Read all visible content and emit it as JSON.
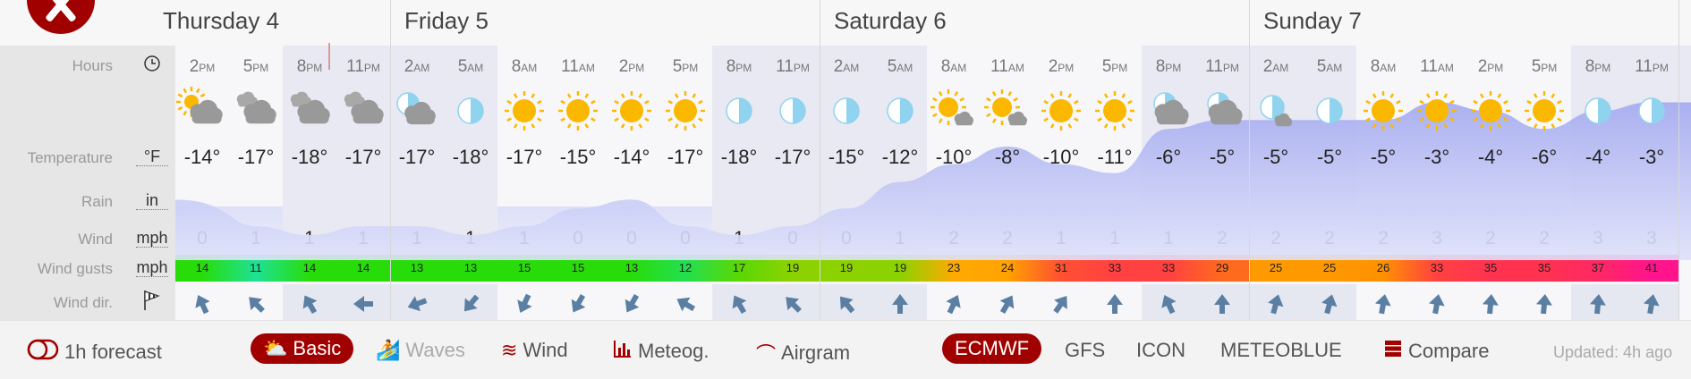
{
  "days": [
    {
      "label": "Thursday 4",
      "hours": [
        {
          "t": "2",
          "ap": "PM",
          "icon": "sun-cloud",
          "temp": "-14°",
          "wind": "0",
          "gust": 14,
          "dir": -25,
          "night": false
        },
        {
          "t": "5",
          "ap": "PM",
          "icon": "clouds",
          "temp": "-17°",
          "wind": "1",
          "gust": 11,
          "dir": -45,
          "night": false
        },
        {
          "t": "8",
          "ap": "PM",
          "icon": "clouds",
          "temp": "-18°",
          "wind": "1",
          "gust": 14,
          "dir": -30,
          "night": true
        },
        {
          "t": "11",
          "ap": "PM",
          "icon": "clouds",
          "temp": "-17°",
          "wind": "1",
          "gust": 14,
          "dir": -90,
          "night": true
        }
      ]
    },
    {
      "label": "Friday 5",
      "hours": [
        {
          "t": "2",
          "ap": "AM",
          "icon": "moon-cloud",
          "temp": "-17°",
          "wind": "1",
          "gust": 13,
          "dir": -110,
          "night": true
        },
        {
          "t": "5",
          "ap": "AM",
          "icon": "moon",
          "temp": "-18°",
          "wind": "1",
          "gust": 13,
          "dir": -140,
          "night": true
        },
        {
          "t": "8",
          "ap": "AM",
          "icon": "sun",
          "temp": "-17°",
          "wind": "1",
          "gust": 15,
          "dir": -155,
          "night": false
        },
        {
          "t": "11",
          "ap": "AM",
          "icon": "sun",
          "temp": "-15°",
          "wind": "0",
          "gust": 15,
          "dir": -150,
          "night": false
        },
        {
          "t": "2",
          "ap": "PM",
          "icon": "sun",
          "temp": "-14°",
          "wind": "0",
          "gust": 13,
          "dir": -150,
          "night": false
        },
        {
          "t": "5",
          "ap": "PM",
          "icon": "sun",
          "temp": "-17°",
          "wind": "0",
          "gust": 12,
          "dir": -60,
          "night": false
        },
        {
          "t": "8",
          "ap": "PM",
          "icon": "moon",
          "temp": "-18°",
          "wind": "1",
          "gust": 17,
          "dir": -30,
          "night": true
        },
        {
          "t": "11",
          "ap": "PM",
          "icon": "moon",
          "temp": "-17°",
          "wind": "0",
          "gust": 19,
          "dir": -45,
          "night": true
        }
      ]
    },
    {
      "label": "Saturday 6",
      "hours": [
        {
          "t": "2",
          "ap": "AM",
          "icon": "moon",
          "temp": "-15°",
          "wind": "0",
          "gust": 19,
          "dir": -40,
          "night": true
        },
        {
          "t": "5",
          "ap": "AM",
          "icon": "moon",
          "temp": "-12°",
          "wind": "1",
          "gust": 19,
          "dir": 0,
          "night": true
        },
        {
          "t": "8",
          "ap": "AM",
          "icon": "sun-small-cloud",
          "temp": "-10°",
          "wind": "2",
          "gust": 23,
          "dir": 25,
          "night": false
        },
        {
          "t": "11",
          "ap": "AM",
          "icon": "sun-small-cloud",
          "temp": "-8°",
          "wind": "2",
          "gust": 24,
          "dir": 30,
          "night": false
        },
        {
          "t": "2",
          "ap": "PM",
          "icon": "sun",
          "temp": "-10°",
          "wind": "1",
          "gust": 31,
          "dir": 35,
          "night": false
        },
        {
          "t": "5",
          "ap": "PM",
          "icon": "sun",
          "temp": "-11°",
          "wind": "1",
          "gust": 33,
          "dir": 0,
          "night": false
        },
        {
          "t": "8",
          "ap": "PM",
          "icon": "moon-bigcloud",
          "temp": "-6°",
          "wind": "1",
          "gust": 33,
          "dir": -25,
          "night": true
        },
        {
          "t": "11",
          "ap": "PM",
          "icon": "moon-bigcloud",
          "temp": "-5°",
          "wind": "2",
          "gust": 29,
          "dir": 0,
          "night": true
        }
      ]
    },
    {
      "label": "Sunday 7",
      "hours": [
        {
          "t": "2",
          "ap": "AM",
          "icon": "moon-small-cloud",
          "temp": "-5°",
          "wind": "2",
          "gust": 25,
          "dir": 15,
          "night": true
        },
        {
          "t": "5",
          "ap": "AM",
          "icon": "moon",
          "temp": "-5°",
          "wind": "2",
          "gust": 25,
          "dir": 15,
          "night": true
        },
        {
          "t": "8",
          "ap": "AM",
          "icon": "sun",
          "temp": "-5°",
          "wind": "2",
          "gust": 26,
          "dir": 10,
          "night": false
        },
        {
          "t": "11",
          "ap": "AM",
          "icon": "sun",
          "temp": "-3°",
          "wind": "3",
          "gust": 33,
          "dir": 10,
          "night": false
        },
        {
          "t": "2",
          "ap": "PM",
          "icon": "sun",
          "temp": "-4°",
          "wind": "2",
          "gust": 35,
          "dir": 5,
          "night": false
        },
        {
          "t": "5",
          "ap": "PM",
          "icon": "sun",
          "temp": "-6°",
          "wind": "2",
          "gust": 35,
          "dir": 5,
          "night": false
        },
        {
          "t": "8",
          "ap": "PM",
          "icon": "moon",
          "temp": "-4°",
          "wind": "3",
          "gust": 37,
          "dir": 5,
          "night": true
        },
        {
          "t": "11",
          "ap": "PM",
          "icon": "moon",
          "temp": "-3°",
          "wind": "3",
          "gust": 41,
          "dir": 10,
          "night": true
        }
      ]
    }
  ],
  "labels": {
    "hours": "Hours",
    "temperature": "Temperature",
    "temperature_unit": "°F",
    "rain": "Rain",
    "rain_unit": "in",
    "wind": "Wind",
    "wind_unit": "mph",
    "gusts": "Wind gusts",
    "gusts_unit": "mph",
    "dir": "Wind dir."
  },
  "bottom": {
    "forecast_toggle": "1h forecast",
    "tabs": [
      "Basic",
      "Waves",
      "Wind",
      "Meteog.",
      "Airgram"
    ],
    "active_tab": "Basic",
    "models": [
      "ECMWF",
      "GFS",
      "ICON",
      "METEOBLUE"
    ],
    "active_model": "ECMWF",
    "compare": "Compare",
    "updated": "Updated: 4h ago"
  },
  "colors": {
    "accent": "#a00000",
    "temp_fill": "#a7adf0",
    "sun": "#fbb800",
    "cloud": "#999999",
    "moon": "#8fd3ee",
    "arrow": "#5b7fa3"
  }
}
